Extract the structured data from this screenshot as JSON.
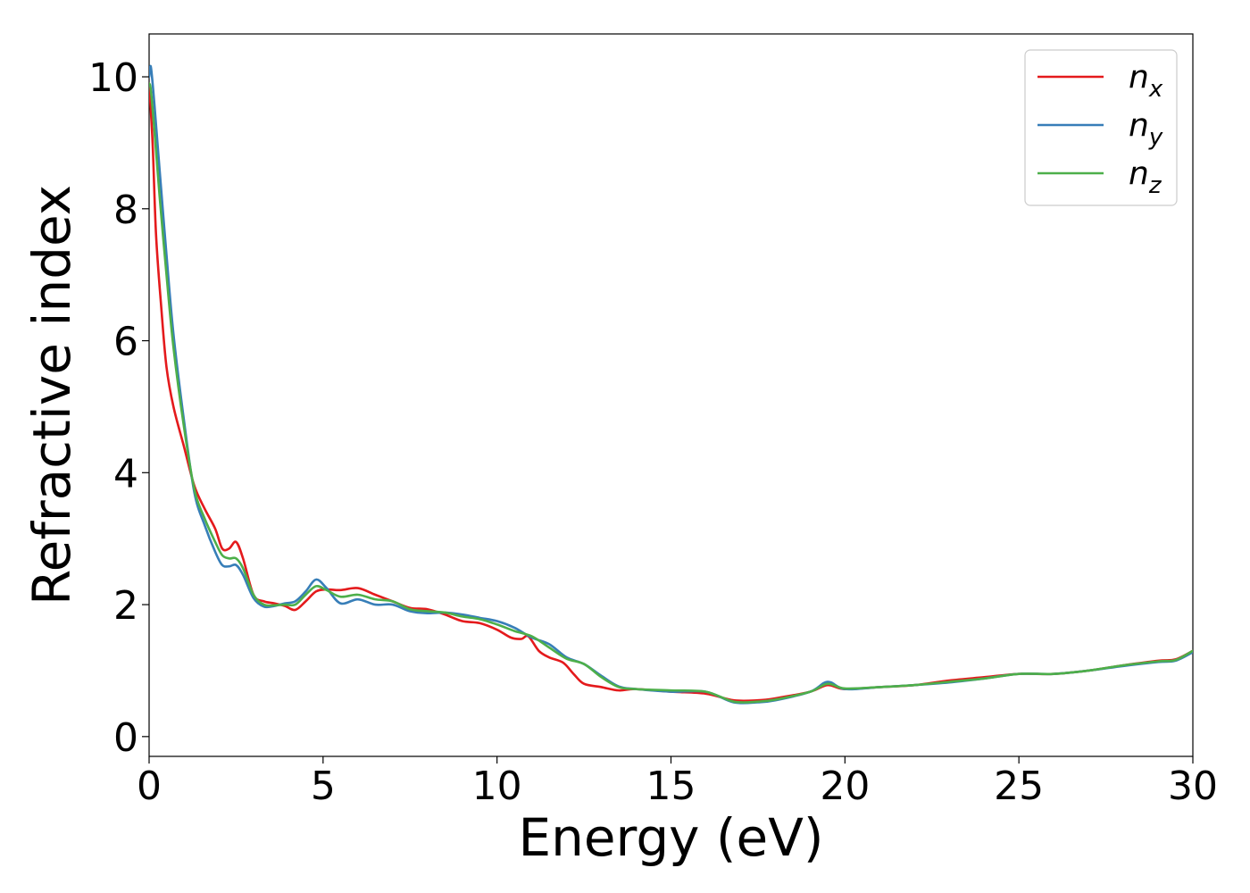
{
  "chart_data": {
    "type": "line",
    "title": "",
    "xlabel": "Energy (eV)",
    "ylabel": "Refractive index",
    "xlim": [
      0,
      30
    ],
    "ylim": [
      -0.3,
      10.65
    ],
    "xticks": [
      0,
      5,
      10,
      15,
      20,
      25,
      30
    ],
    "yticks": [
      0,
      2,
      4,
      6,
      8,
      10
    ],
    "grid": false,
    "legend_position": "top-right",
    "series": [
      {
        "name": "n",
        "subscript": "x",
        "color": "#e41a1c",
        "x": [
          0,
          0.1,
          0.2,
          0.35,
          0.5,
          0.7,
          1.0,
          1.3,
          1.6,
          1.9,
          2.1,
          2.3,
          2.5,
          2.7,
          3.0,
          3.3,
          3.6,
          3.9,
          4.2,
          4.5,
          4.8,
          5.1,
          5.5,
          6.0,
          6.5,
          7.0,
          7.5,
          8.0,
          8.5,
          9.0,
          9.5,
          10.0,
          10.4,
          10.7,
          10.9,
          11.2,
          11.5,
          11.9,
          12.2,
          12.5,
          13.0,
          13.5,
          14.0,
          15.0,
          16.0,
          16.8,
          17.5,
          18.0,
          19.0,
          19.5,
          20.0,
          21.0,
          22.0,
          23.0,
          24.0,
          25.0,
          26.0,
          27.0,
          28.0,
          29.0,
          29.5,
          30.0
        ],
        "values": [
          9.9,
          9.0,
          7.6,
          6.5,
          5.6,
          5.0,
          4.4,
          3.8,
          3.45,
          3.15,
          2.85,
          2.85,
          2.95,
          2.7,
          2.15,
          2.05,
          2.02,
          1.98,
          1.92,
          2.05,
          2.2,
          2.23,
          2.22,
          2.25,
          2.15,
          2.05,
          1.95,
          1.93,
          1.85,
          1.75,
          1.72,
          1.62,
          1.5,
          1.48,
          1.52,
          1.3,
          1.2,
          1.12,
          0.95,
          0.8,
          0.75,
          0.7,
          0.72,
          0.68,
          0.65,
          0.55,
          0.55,
          0.58,
          0.68,
          0.78,
          0.72,
          0.75,
          0.78,
          0.85,
          0.9,
          0.95,
          0.95,
          1.0,
          1.08,
          1.15,
          1.17,
          1.3
        ]
      },
      {
        "name": "n",
        "subscript": "y",
        "color": "#377eb8",
        "x": [
          0,
          0.05,
          0.15,
          0.3,
          0.5,
          0.7,
          1.0,
          1.3,
          1.6,
          1.9,
          2.1,
          2.3,
          2.5,
          2.7,
          3.0,
          3.3,
          3.6,
          3.9,
          4.2,
          4.5,
          4.8,
          5.1,
          5.5,
          6.0,
          6.5,
          7.0,
          7.5,
          8.0,
          8.5,
          9.0,
          9.5,
          10.0,
          10.5,
          11.0,
          11.5,
          12.0,
          12.5,
          13.0,
          13.5,
          14.0,
          15.0,
          16.0,
          16.8,
          17.5,
          18.0,
          19.0,
          19.5,
          20.0,
          21.0,
          22.0,
          23.0,
          24.0,
          25.0,
          26.0,
          27.0,
          28.0,
          29.0,
          29.5,
          30.0
        ],
        "values": [
          10.0,
          10.15,
          9.6,
          8.6,
          7.3,
          6.1,
          4.8,
          3.7,
          3.2,
          2.8,
          2.6,
          2.58,
          2.6,
          2.45,
          2.1,
          1.97,
          1.98,
          2.02,
          2.05,
          2.2,
          2.38,
          2.25,
          2.02,
          2.08,
          2.0,
          2.0,
          1.9,
          1.87,
          1.88,
          1.85,
          1.8,
          1.75,
          1.65,
          1.5,
          1.4,
          1.2,
          1.1,
          0.92,
          0.76,
          0.72,
          0.68,
          0.68,
          0.52,
          0.52,
          0.55,
          0.68,
          0.83,
          0.72,
          0.75,
          0.78,
          0.82,
          0.88,
          0.95,
          0.95,
          1.0,
          1.07,
          1.13,
          1.15,
          1.28
        ]
      },
      {
        "name": "n",
        "subscript": "z",
        "color": "#4daf4a",
        "x": [
          0,
          0.05,
          0.15,
          0.3,
          0.5,
          0.7,
          1.0,
          1.3,
          1.6,
          1.9,
          2.1,
          2.3,
          2.5,
          2.7,
          3.0,
          3.3,
          3.6,
          3.9,
          4.2,
          4.5,
          4.8,
          5.1,
          5.5,
          6.0,
          6.5,
          7.0,
          7.5,
          8.0,
          8.5,
          9.0,
          9.5,
          10.0,
          10.5,
          11.0,
          11.5,
          12.0,
          12.5,
          13.0,
          13.5,
          14.0,
          15.0,
          16.0,
          16.8,
          17.5,
          18.0,
          19.0,
          19.5,
          20.0,
          21.0,
          22.0,
          23.0,
          24.0,
          25.0,
          26.0,
          27.0,
          28.0,
          29.0,
          29.5,
          30.0
        ],
        "values": [
          9.9,
          9.8,
          9.2,
          8.2,
          7.0,
          5.9,
          4.7,
          3.75,
          3.3,
          2.95,
          2.75,
          2.7,
          2.7,
          2.55,
          2.15,
          2.0,
          1.99,
          2.0,
          2.0,
          2.15,
          2.28,
          2.22,
          2.12,
          2.15,
          2.08,
          2.05,
          1.93,
          1.9,
          1.88,
          1.82,
          1.78,
          1.7,
          1.6,
          1.52,
          1.35,
          1.18,
          1.1,
          0.9,
          0.75,
          0.72,
          0.7,
          0.68,
          0.53,
          0.53,
          0.56,
          0.68,
          0.8,
          0.73,
          0.75,
          0.78,
          0.83,
          0.88,
          0.95,
          0.95,
          1.0,
          1.08,
          1.14,
          1.16,
          1.3
        ]
      }
    ]
  }
}
